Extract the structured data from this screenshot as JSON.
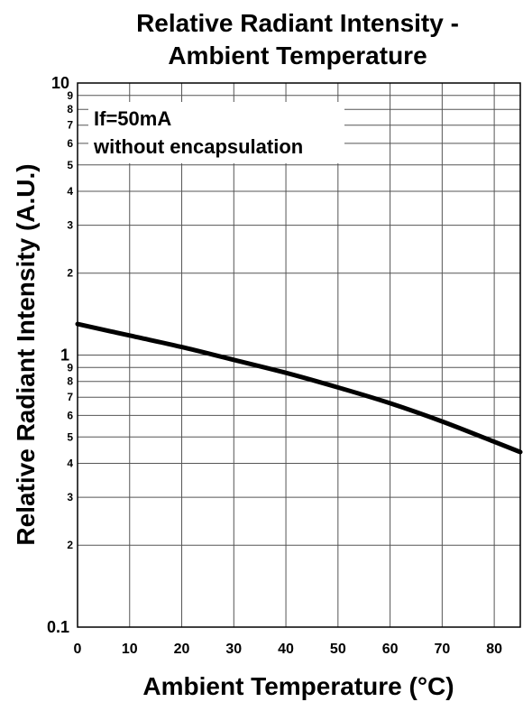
{
  "chart_data": {
    "type": "line",
    "title_lines": [
      "Relative Radiant Intensity -",
      "Ambient Temperature"
    ],
    "xlabel": "Ambient Temperature (°C)",
    "ylabel": "Relative Radiant Intensity (A.U.)",
    "xlim": [
      0,
      85
    ],
    "ylim": [
      0.1,
      10
    ],
    "y_scale": "log",
    "grid": true,
    "x_ticks": [
      0,
      10,
      20,
      30,
      40,
      50,
      60,
      70,
      80
    ],
    "x_tick_labels": [
      "0",
      "10",
      "20",
      "30",
      "40",
      "50",
      "60",
      "70",
      "80"
    ],
    "y_major_ticks": [
      0.1,
      1,
      10
    ],
    "y_major_labels": [
      "0.1",
      "1",
      "10"
    ],
    "y_minor_ticks": [
      0.2,
      0.3,
      0.4,
      0.5,
      0.6,
      0.7,
      0.8,
      0.9,
      2,
      3,
      4,
      5,
      6,
      7,
      8,
      9
    ],
    "y_minor_labels": [
      "2",
      "3",
      "4",
      "5",
      "6",
      "7",
      "8",
      "9",
      "2",
      "3",
      "4",
      "5",
      "6",
      "7",
      "8",
      "9"
    ],
    "annotations": [
      "If=50mA",
      "without encapsulation"
    ],
    "series": [
      {
        "color": "#000000",
        "x": [
          0,
          10,
          20,
          30,
          40,
          50,
          60,
          70,
          80,
          85
        ],
        "y": [
          1.3,
          1.18,
          1.07,
          0.96,
          0.86,
          0.76,
          0.665,
          0.57,
          0.48,
          0.44
        ]
      }
    ]
  }
}
